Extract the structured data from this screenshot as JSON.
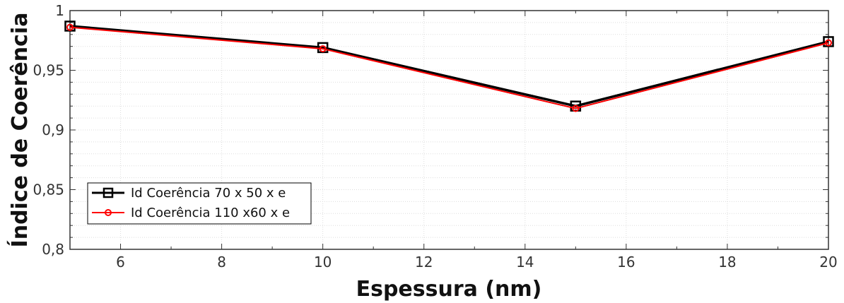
{
  "chart_data": {
    "type": "line",
    "title": "",
    "xlabel": "Espessura (nm)",
    "ylabel": "Índice de Coerência",
    "xlim": [
      5,
      20
    ],
    "ylim": [
      0.8,
      1
    ],
    "x_ticks": [
      6,
      8,
      10,
      12,
      14,
      16,
      18,
      20
    ],
    "y_ticks": [
      0.8,
      0.85,
      0.9,
      0.95,
      1
    ],
    "y_tick_labels": [
      "0,8",
      "0,85",
      "0,9",
      "0,95",
      "1"
    ],
    "grid": true,
    "legend_position": "bottom-left",
    "series": [
      {
        "name": "Id Coerência 70 x 50 x e",
        "color": "#000000",
        "marker": "square",
        "x": [
          5,
          10,
          15,
          20
        ],
        "y": [
          0.987,
          0.969,
          0.92,
          0.974
        ]
      },
      {
        "name": "Id Coerência 110 x60 x e",
        "color": "#ff0000",
        "marker": "circle",
        "x": [
          5,
          10,
          15,
          20
        ],
        "y": [
          0.986,
          0.968,
          0.918,
          0.973
        ]
      }
    ]
  }
}
